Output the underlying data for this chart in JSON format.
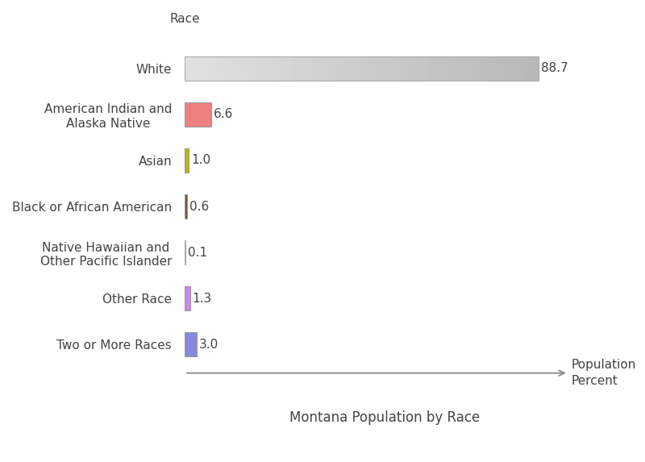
{
  "categories": [
    "White",
    "American Indian and\nAlaska Native",
    "Asian",
    "Black or African American",
    "Native Hawaiian and\nOther Pacific Islander",
    "Other Race",
    "Two or More Races"
  ],
  "values": [
    88.7,
    6.6,
    1.0,
    0.6,
    0.1,
    1.3,
    3.0
  ],
  "bar_colors": [
    "gradient_gray",
    "#f08080",
    "#c8b400",
    "#7a5230",
    null,
    "#cc88ee",
    "#8888dd"
  ],
  "value_labels": [
    "88.7",
    "6.6",
    "1.0",
    "0.6",
    "0.1",
    "1.3",
    "3.0"
  ],
  "title": "Montana Population by Race",
  "xlabel": "Population\nPercent",
  "ylabel": "Race",
  "xlim": [
    0,
    100
  ],
  "background_color": "#ffffff",
  "label_fontsize": 11,
  "title_fontsize": 12,
  "axis_label_fontsize": 11
}
